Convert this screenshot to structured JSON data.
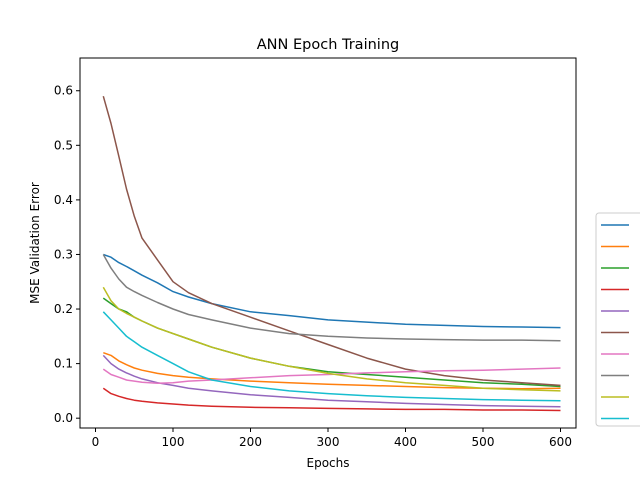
{
  "chart_data": {
    "type": "line",
    "title": "ANN Epoch Training",
    "xlabel": "Epochs",
    "ylabel": "MSE Validation Error",
    "xlim": [
      -20,
      620
    ],
    "ylim": [
      -0.018,
      0.66
    ],
    "xticks": [
      0,
      100,
      200,
      300,
      400,
      500,
      600
    ],
    "yticks": [
      0.0,
      0.1,
      0.2,
      0.3,
      0.4,
      0.5,
      0.6
    ],
    "xtick_labels": [
      "0",
      "100",
      "200",
      "300",
      "400",
      "500",
      "600"
    ],
    "ytick_labels": [
      "0.0",
      "0.1",
      "0.2",
      "0.3",
      "0.4",
      "0.5",
      "0.6"
    ],
    "grid": false,
    "legend_position": "right (partially outside plot)",
    "x": [
      10,
      20,
      30,
      40,
      50,
      60,
      80,
      100,
      120,
      150,
      200,
      250,
      300,
      350,
      400,
      450,
      500,
      550,
      600
    ],
    "series": [
      {
        "color": "#1f77b4",
        "values": [
          0.3,
          0.295,
          0.285,
          0.278,
          0.27,
          0.262,
          0.248,
          0.232,
          0.222,
          0.21,
          0.195,
          0.188,
          0.18,
          0.176,
          0.172,
          0.17,
          0.168,
          0.167,
          0.166
        ]
      },
      {
        "color": "#ff7f0e",
        "values": [
          0.12,
          0.115,
          0.105,
          0.098,
          0.092,
          0.088,
          0.082,
          0.078,
          0.075,
          0.072,
          0.068,
          0.065,
          0.062,
          0.06,
          0.058,
          0.056,
          0.055,
          0.054,
          0.055
        ]
      },
      {
        "color": "#2ca02c",
        "values": [
          0.22,
          0.21,
          0.2,
          0.195,
          0.185,
          0.178,
          0.165,
          0.155,
          0.145,
          0.13,
          0.11,
          0.095,
          0.085,
          0.08,
          0.075,
          0.07,
          0.065,
          0.062,
          0.058
        ]
      },
      {
        "color": "#d62728",
        "values": [
          0.055,
          0.045,
          0.04,
          0.036,
          0.033,
          0.031,
          0.028,
          0.026,
          0.024,
          0.022,
          0.02,
          0.019,
          0.018,
          0.017,
          0.016,
          0.016,
          0.015,
          0.015,
          0.014
        ]
      },
      {
        "color": "#9467bd",
        "values": [
          0.115,
          0.1,
          0.09,
          0.083,
          0.077,
          0.072,
          0.065,
          0.06,
          0.055,
          0.05,
          0.043,
          0.038,
          0.033,
          0.03,
          0.027,
          0.025,
          0.023,
          0.022,
          0.021
        ]
      },
      {
        "color": "#8c564b",
        "values": [
          0.59,
          0.54,
          0.48,
          0.42,
          0.37,
          0.33,
          0.29,
          0.25,
          0.23,
          0.21,
          0.185,
          0.16,
          0.135,
          0.11,
          0.09,
          0.078,
          0.07,
          0.065,
          0.06
        ]
      },
      {
        "color": "#e377c2",
        "values": [
          0.09,
          0.08,
          0.075,
          0.07,
          0.068,
          0.066,
          0.064,
          0.065,
          0.068,
          0.07,
          0.074,
          0.078,
          0.08,
          0.083,
          0.085,
          0.087,
          0.088,
          0.09,
          0.092
        ]
      },
      {
        "color": "#7f7f7f",
        "values": [
          0.3,
          0.275,
          0.255,
          0.24,
          0.232,
          0.225,
          0.212,
          0.2,
          0.19,
          0.18,
          0.165,
          0.155,
          0.15,
          0.147,
          0.145,
          0.144,
          0.143,
          0.143,
          0.142
        ]
      },
      {
        "color": "#bcbd22",
        "values": [
          0.24,
          0.215,
          0.2,
          0.192,
          0.185,
          0.178,
          0.165,
          0.155,
          0.145,
          0.13,
          0.11,
          0.095,
          0.082,
          0.072,
          0.065,
          0.06,
          0.055,
          0.052,
          0.05
        ]
      },
      {
        "color": "#17becf",
        "values": [
          0.195,
          0.18,
          0.165,
          0.15,
          0.14,
          0.13,
          0.115,
          0.1,
          0.085,
          0.07,
          0.058,
          0.05,
          0.045,
          0.041,
          0.038,
          0.036,
          0.034,
          0.033,
          0.032
        ]
      }
    ]
  }
}
